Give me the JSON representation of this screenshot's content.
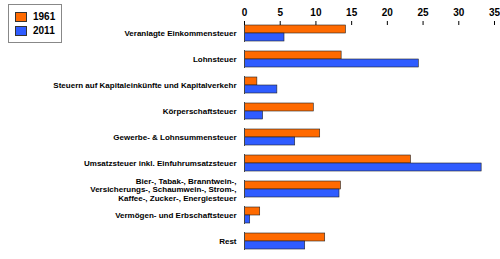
{
  "chart_data": {
    "type": "bar",
    "orientation": "horizontal",
    "categories": [
      "Veranlagte Einkommensteuer",
      "Lohnsteuer",
      "Steuern auf Kapitaleinkünfte und Kapitalverkehr",
      "Körperschaftsteuer",
      "Gewerbe- & Lohnsummensteuer",
      "Umsatzsteuer inkl. Einfuhrumsatzsteuer",
      "Bier-, Tabak-, Branntwein-, Versicherungs-, Schaumwein-, Strom-,\nKaffee-, Zucker-, Energiesteuer",
      "Vermögen- und Erbschaftsteuer",
      "Rest"
    ],
    "series": [
      {
        "name": "1961",
        "color": "#ff6a00",
        "values": [
          14.2,
          13.6,
          1.8,
          9.7,
          10.6,
          23.3,
          13.5,
          2.2,
          11.3
        ]
      },
      {
        "name": "2011",
        "color": "#2f5cff",
        "values": [
          5.6,
          24.4,
          4.6,
          2.6,
          7.1,
          33.2,
          13.3,
          0.8,
          8.5
        ]
      }
    ],
    "xlim": [
      0,
      35
    ],
    "xticks": [
      0,
      5,
      10,
      15,
      20,
      25,
      30,
      35
    ],
    "grid": false,
    "legend": "top-left"
  }
}
